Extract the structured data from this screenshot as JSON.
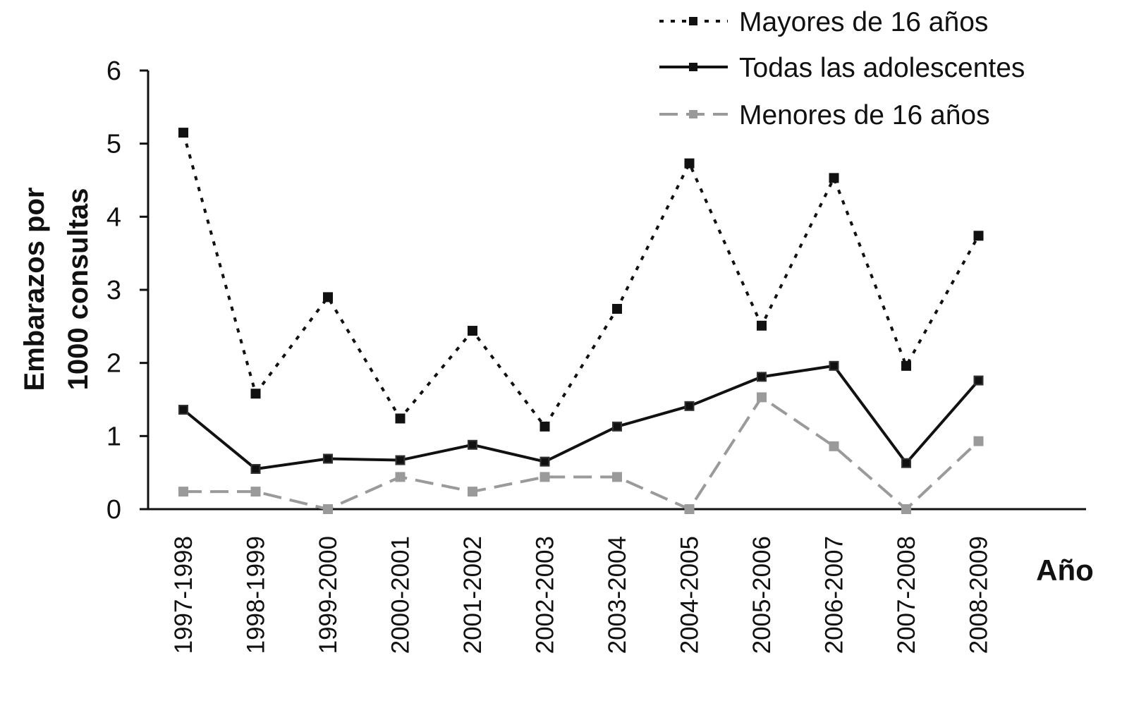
{
  "chart_data": {
    "type": "line",
    "title": "",
    "xlabel": "Año",
    "ylabel": [
      "Embarazos por",
      "1000 consultas"
    ],
    "ylim": [
      0,
      6
    ],
    "yticks": [
      "0",
      "1",
      "2",
      "3",
      "4",
      "5",
      "6"
    ],
    "grid": false,
    "legend_position": "top-right",
    "categories": [
      "1997-1998",
      "1998-1999",
      "1999-2000",
      "2000-2001",
      "2001-2002",
      "2002-2003",
      "2003-2004",
      "2004-2005",
      "2005-2006",
      "2006-2007",
      "2007-2008",
      "2008-2009"
    ],
    "series": [
      {
        "name": "Mayores de 16 años",
        "style": "dotted",
        "color": "#111111",
        "values": [
          5.15,
          1.58,
          2.9,
          1.24,
          2.44,
          1.13,
          2.74,
          4.73,
          2.51,
          4.53,
          1.96,
          3.74
        ]
      },
      {
        "name": "Todas las adolescentes",
        "style": "solid",
        "color": "#111111",
        "values": [
          1.36,
          0.55,
          0.69,
          0.67,
          0.88,
          0.65,
          1.13,
          1.41,
          1.81,
          1.96,
          0.63,
          1.76
        ]
      },
      {
        "name": "Menores de 16 años",
        "style": "dashed",
        "color": "#9a9a9a",
        "values": [
          0.24,
          0.24,
          0.0,
          0.44,
          0.24,
          0.44,
          0.44,
          0.0,
          1.53,
          0.86,
          0.0,
          0.93
        ]
      }
    ]
  }
}
